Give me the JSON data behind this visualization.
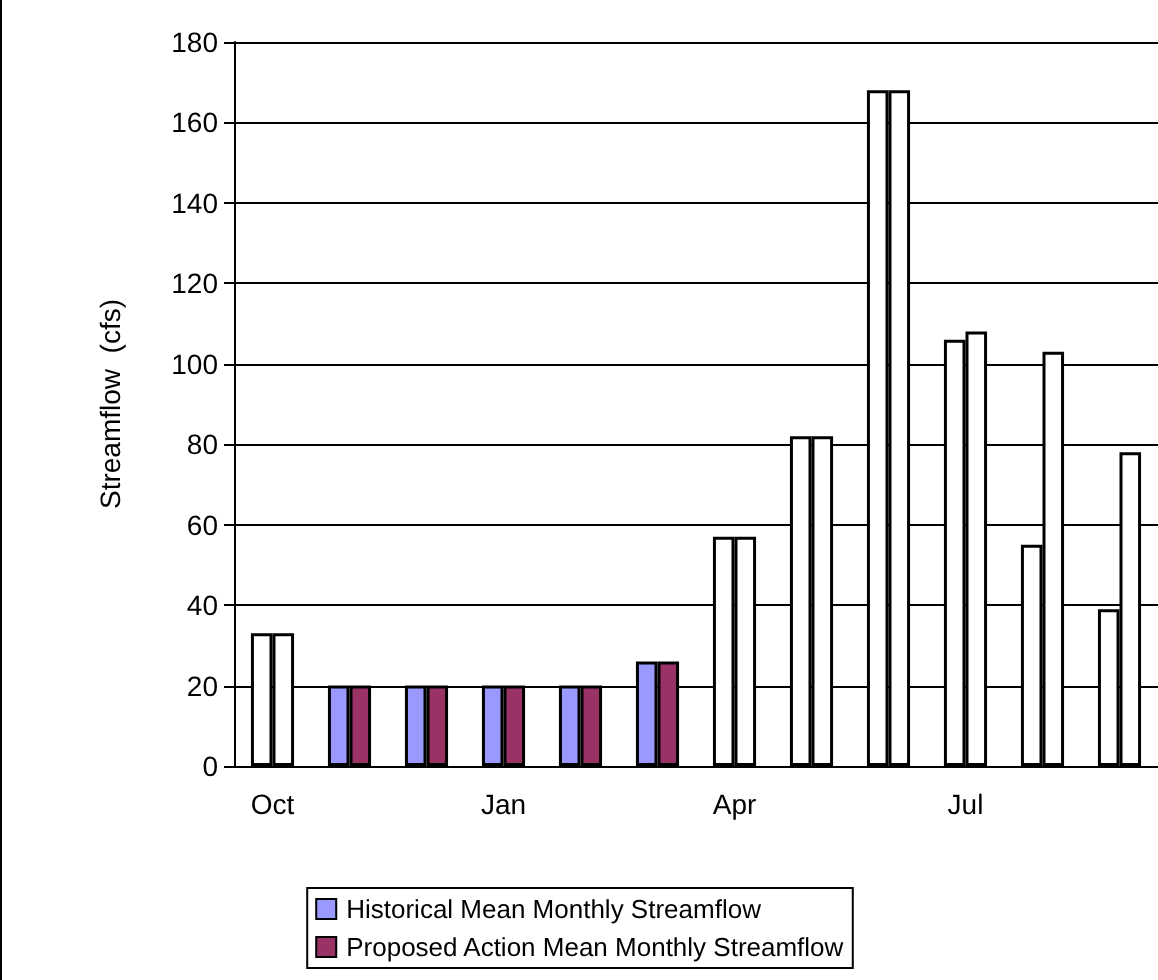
{
  "chart_data": {
    "type": "bar",
    "ylabel": "Streamflow  (cfs)",
    "categories": [
      "Oct",
      null,
      null,
      "Jan",
      null,
      null,
      "Apr",
      null,
      null,
      "Jul",
      null,
      null
    ],
    "series": [
      {
        "name": "Historical Mean Monthly Streamflow",
        "color": "#9999ff",
        "colors": [
          "#ffffff",
          "#9999ff",
          "#9999ff",
          "#9999ff",
          "#9999ff",
          "#9999ff",
          "#ffffff",
          "#ffffff",
          "#ffffff",
          "#ffffff",
          "#ffffff",
          "#ffffff"
        ],
        "values": [
          33,
          20,
          20,
          20,
          20,
          26,
          57,
          82,
          168,
          106,
          55,
          39
        ]
      },
      {
        "name": "Proposed Action Mean Monthly Streamflow",
        "color": "#993366",
        "colors": [
          "#ffffff",
          "#993366",
          "#993366",
          "#993366",
          "#993366",
          "#993366",
          "#ffffff",
          "#ffffff",
          "#ffffff",
          "#ffffff",
          "#ffffff",
          "#ffffff"
        ],
        "values": [
          33,
          20,
          20,
          20,
          20,
          26,
          57,
          82,
          168,
          108,
          103,
          78
        ]
      }
    ],
    "ylim": [
      0,
      180
    ],
    "yticks": [
      0,
      20,
      40,
      60,
      80,
      100,
      120,
      140,
      160,
      180
    ],
    "grid": "y",
    "legend": "bottom"
  }
}
